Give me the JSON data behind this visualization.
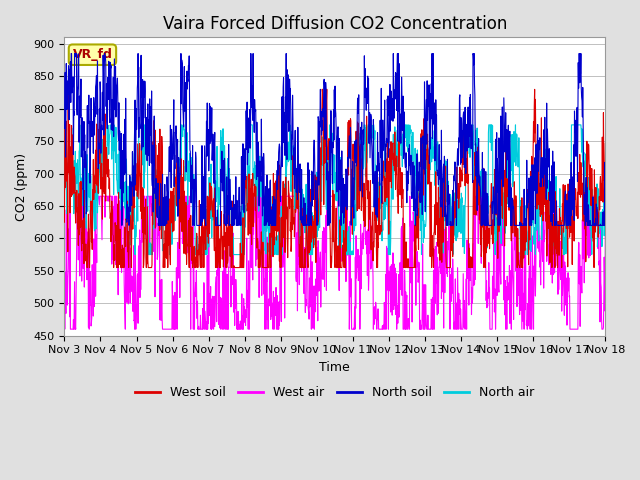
{
  "title": "Vaira Forced Diffusion CO2 Concentration",
  "xlabel": "Time",
  "ylabel": "CO2 (ppm)",
  "ylim": [
    450,
    910
  ],
  "yticks": [
    450,
    500,
    550,
    600,
    650,
    700,
    750,
    800,
    850,
    900
  ],
  "n_days": 15,
  "pts_per_day": 96,
  "x_tick_labels": [
    "Nov 3",
    "Nov 4",
    "Nov 5",
    "Nov 6",
    "Nov 7",
    "Nov 8",
    "Nov 9",
    "Nov 10",
    "Nov 11",
    "Nov 12",
    "Nov 13",
    "Nov 14",
    "Nov 15",
    "Nov 16",
    "Nov 17",
    "Nov 18"
  ],
  "colors": {
    "west_soil": "#dd0000",
    "west_air": "#ff00ff",
    "north_soil": "#0000cc",
    "north_air": "#00ccdd"
  },
  "legend_labels": [
    "West soil",
    "West air",
    "North soil",
    "North air"
  ],
  "annotation_text": "VR_fd",
  "annotation_color": "#aa0000",
  "annotation_bg": "#ffffaa",
  "annotation_border": "#aaaa00",
  "bg_color": "#e0e0e0",
  "plot_bg": "#ffffff",
  "line_width": 0.8,
  "title_fontsize": 12,
  "axis_fontsize": 9,
  "tick_fontsize": 8
}
